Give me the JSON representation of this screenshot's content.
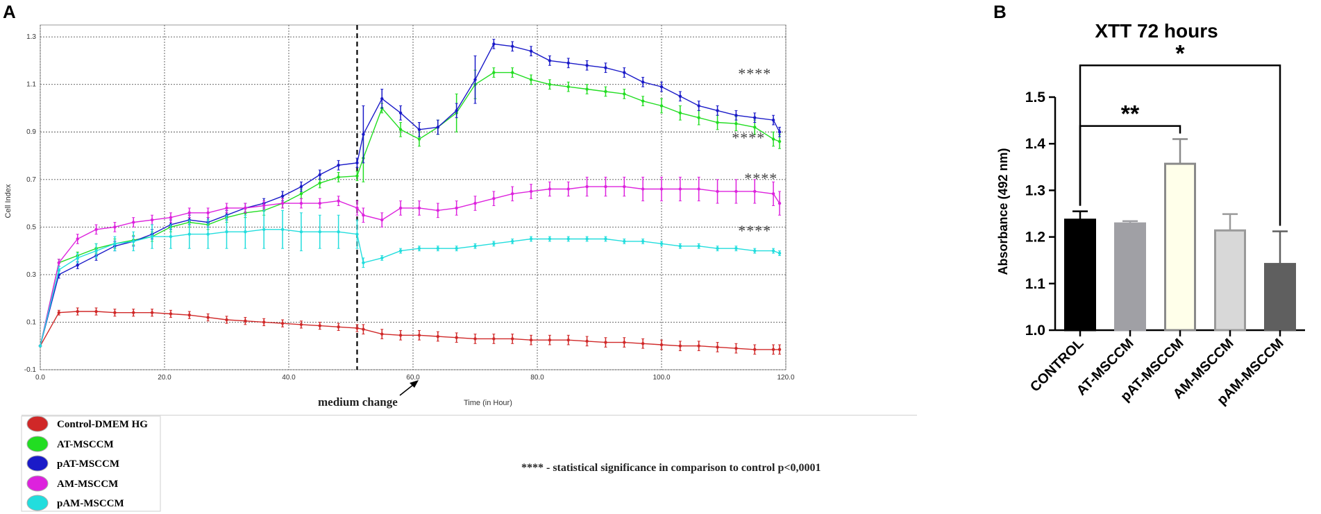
{
  "panel_a": {
    "letter": "A",
    "note": "**** - statistical significance in comparison to control p<0,0001",
    "annotation": "medium change"
  },
  "panel_b": {
    "letter": "B"
  },
  "chart_data": [
    {
      "type": "line",
      "title": "",
      "xlabel": "Time (in Hour)",
      "ylabel": "Cell Index",
      "xlim": [
        0,
        120
      ],
      "ylim": [
        -0.1,
        1.35
      ],
      "grid": true,
      "legend_placement": "below-left",
      "x_ticks": [
        "0.0",
        "20.0",
        "40.0",
        "60.0",
        "80.0",
        "100.0",
        "120.0"
      ],
      "y_ticks": [
        "-0.1",
        "0.1",
        "0.3",
        "0.5",
        "0.7",
        "0.9",
        "1.1",
        "1.3"
      ],
      "vline": {
        "x": 51,
        "label": "medium change"
      },
      "significance_labels": [
        {
          "text": "****",
          "x": 115,
          "y": 1.15
        },
        {
          "text": "****",
          "x": 114,
          "y": 0.88
        },
        {
          "text": "****",
          "x": 116,
          "y": 0.71
        },
        {
          "text": "****",
          "x": 115,
          "y": 0.49
        }
      ],
      "series": [
        {
          "name": "Control-DMEM HG",
          "color": "#d02828",
          "x": [
            0,
            3,
            6,
            9,
            12,
            15,
            18,
            21,
            24,
            27,
            30,
            33,
            36,
            39,
            42,
            45,
            48,
            51,
            52,
            55,
            58,
            61,
            64,
            67,
            70,
            73,
            76,
            79,
            82,
            85,
            88,
            91,
            94,
            97,
            100,
            103,
            106,
            109,
            112,
            115,
            118,
            119
          ],
          "y": [
            0.0,
            0.14,
            0.145,
            0.145,
            0.14,
            0.14,
            0.14,
            0.135,
            0.13,
            0.12,
            0.11,
            0.105,
            0.1,
            0.095,
            0.09,
            0.085,
            0.08,
            0.075,
            0.07,
            0.05,
            0.045,
            0.045,
            0.04,
            0.035,
            0.03,
            0.03,
            0.03,
            0.025,
            0.025,
            0.025,
            0.02,
            0.015,
            0.015,
            0.01,
            0.005,
            0.0,
            0.0,
            -0.005,
            -0.01,
            -0.015,
            -0.015,
            -0.015
          ],
          "err": [
            0.005,
            0.01,
            0.015,
            0.015,
            0.015,
            0.015,
            0.015,
            0.015,
            0.015,
            0.015,
            0.015,
            0.015,
            0.015,
            0.015,
            0.015,
            0.015,
            0.015,
            0.015,
            0.02,
            0.02,
            0.02,
            0.02,
            0.02,
            0.02,
            0.02,
            0.02,
            0.02,
            0.02,
            0.02,
            0.02,
            0.02,
            0.02,
            0.02,
            0.02,
            0.02,
            0.02,
            0.02,
            0.02,
            0.02,
            0.02,
            0.02,
            0.02
          ]
        },
        {
          "name": "AT-MSCCM",
          "color": "#22dd22",
          "x": [
            0,
            3,
            6,
            9,
            12,
            15,
            18,
            21,
            24,
            27,
            30,
            33,
            36,
            39,
            42,
            45,
            48,
            51,
            52,
            55,
            58,
            61,
            64,
            67,
            70,
            73,
            76,
            79,
            82,
            85,
            88,
            91,
            94,
            97,
            100,
            103,
            106,
            109,
            112,
            115,
            118,
            119
          ],
          "y": [
            0.0,
            0.35,
            0.38,
            0.41,
            0.43,
            0.445,
            0.46,
            0.5,
            0.52,
            0.51,
            0.54,
            0.56,
            0.57,
            0.6,
            0.64,
            0.685,
            0.71,
            0.715,
            0.79,
            1.0,
            0.91,
            0.87,
            0.92,
            0.98,
            1.1,
            1.15,
            1.15,
            1.12,
            1.1,
            1.09,
            1.08,
            1.07,
            1.06,
            1.03,
            1.01,
            0.98,
            0.96,
            0.94,
            0.935,
            0.92,
            0.87,
            0.86
          ],
          "err": [
            0.005,
            0.015,
            0.015,
            0.02,
            0.02,
            0.02,
            0.02,
            0.02,
            0.02,
            0.02,
            0.02,
            0.02,
            0.02,
            0.02,
            0.02,
            0.02,
            0.02,
            0.02,
            0.1,
            0.02,
            0.03,
            0.03,
            0.03,
            0.08,
            0.06,
            0.02,
            0.02,
            0.02,
            0.02,
            0.02,
            0.02,
            0.02,
            0.02,
            0.02,
            0.03,
            0.03,
            0.03,
            0.03,
            0.03,
            0.03,
            0.03,
            0.03
          ]
        },
        {
          "name": "pAT-MSCCM",
          "color": "#1a1ac8",
          "x": [
            0,
            3,
            6,
            9,
            12,
            15,
            18,
            21,
            24,
            27,
            30,
            33,
            36,
            39,
            42,
            45,
            48,
            51,
            52,
            55,
            58,
            61,
            64,
            67,
            70,
            73,
            76,
            79,
            82,
            85,
            88,
            91,
            94,
            97,
            100,
            103,
            106,
            109,
            112,
            115,
            118,
            119
          ],
          "y": [
            0.0,
            0.3,
            0.34,
            0.38,
            0.42,
            0.44,
            0.47,
            0.51,
            0.53,
            0.52,
            0.55,
            0.58,
            0.6,
            0.63,
            0.67,
            0.72,
            0.76,
            0.77,
            0.89,
            1.04,
            0.98,
            0.91,
            0.92,
            0.99,
            1.12,
            1.27,
            1.26,
            1.24,
            1.2,
            1.19,
            1.18,
            1.17,
            1.15,
            1.11,
            1.09,
            1.05,
            1.01,
            0.99,
            0.97,
            0.96,
            0.95,
            0.9
          ],
          "err": [
            0.005,
            0.015,
            0.015,
            0.02,
            0.02,
            0.02,
            0.02,
            0.02,
            0.02,
            0.02,
            0.02,
            0.02,
            0.02,
            0.02,
            0.02,
            0.02,
            0.02,
            0.02,
            0.12,
            0.04,
            0.03,
            0.03,
            0.03,
            0.03,
            0.1,
            0.02,
            0.02,
            0.02,
            0.02,
            0.02,
            0.02,
            0.02,
            0.02,
            0.02,
            0.02,
            0.02,
            0.02,
            0.02,
            0.02,
            0.02,
            0.02,
            0.02
          ]
        },
        {
          "name": "AM-MSCCM",
          "color": "#dd22dd",
          "x": [
            0,
            3,
            6,
            9,
            12,
            15,
            18,
            21,
            24,
            27,
            30,
            33,
            36,
            39,
            42,
            45,
            48,
            51,
            52,
            55,
            58,
            61,
            64,
            67,
            70,
            73,
            76,
            79,
            82,
            85,
            88,
            91,
            94,
            97,
            100,
            103,
            106,
            109,
            112,
            115,
            118,
            119
          ],
          "y": [
            0.0,
            0.35,
            0.45,
            0.49,
            0.5,
            0.52,
            0.53,
            0.54,
            0.56,
            0.56,
            0.58,
            0.58,
            0.59,
            0.6,
            0.6,
            0.6,
            0.61,
            0.58,
            0.55,
            0.53,
            0.58,
            0.58,
            0.57,
            0.58,
            0.6,
            0.62,
            0.64,
            0.65,
            0.66,
            0.66,
            0.67,
            0.67,
            0.67,
            0.66,
            0.66,
            0.66,
            0.66,
            0.65,
            0.65,
            0.65,
            0.64,
            0.6
          ],
          "err": [
            0.005,
            0.015,
            0.02,
            0.02,
            0.02,
            0.02,
            0.02,
            0.02,
            0.02,
            0.02,
            0.02,
            0.02,
            0.02,
            0.02,
            0.02,
            0.02,
            0.02,
            0.03,
            0.03,
            0.03,
            0.03,
            0.03,
            0.03,
            0.03,
            0.03,
            0.03,
            0.03,
            0.03,
            0.03,
            0.03,
            0.04,
            0.04,
            0.04,
            0.05,
            0.05,
            0.05,
            0.05,
            0.05,
            0.05,
            0.05,
            0.05,
            0.05
          ]
        },
        {
          "name": "pAM-MSCCM",
          "color": "#22dddd",
          "x": [
            0,
            3,
            6,
            9,
            12,
            15,
            18,
            21,
            24,
            27,
            30,
            33,
            36,
            39,
            42,
            45,
            48,
            51,
            52,
            55,
            58,
            61,
            64,
            67,
            70,
            73,
            76,
            79,
            82,
            85,
            88,
            91,
            94,
            97,
            100,
            103,
            106,
            109,
            112,
            115,
            118,
            119
          ],
          "y": [
            0.0,
            0.32,
            0.37,
            0.4,
            0.43,
            0.44,
            0.46,
            0.46,
            0.47,
            0.47,
            0.48,
            0.48,
            0.49,
            0.49,
            0.48,
            0.48,
            0.48,
            0.47,
            0.35,
            0.37,
            0.4,
            0.41,
            0.41,
            0.41,
            0.42,
            0.43,
            0.44,
            0.45,
            0.45,
            0.45,
            0.45,
            0.45,
            0.44,
            0.44,
            0.43,
            0.42,
            0.42,
            0.41,
            0.41,
            0.4,
            0.4,
            0.39
          ],
          "err": [
            0.005,
            0.015,
            0.02,
            0.03,
            0.03,
            0.04,
            0.05,
            0.05,
            0.06,
            0.06,
            0.07,
            0.07,
            0.08,
            0.08,
            0.08,
            0.07,
            0.07,
            0.06,
            0.02,
            0.01,
            0.01,
            0.01,
            0.01,
            0.01,
            0.01,
            0.01,
            0.01,
            0.01,
            0.01,
            0.01,
            0.01,
            0.01,
            0.01,
            0.01,
            0.01,
            0.01,
            0.01,
            0.01,
            0.01,
            0.01,
            0.01,
            0.01
          ]
        }
      ]
    },
    {
      "type": "bar",
      "title": "XTT 72 hours",
      "xlabel": "",
      "ylabel": "Absorbance (492 nm)",
      "ylim": [
        1.0,
        1.5
      ],
      "y_ticks": [
        "1.0",
        "1.1",
        "1.2",
        "1.3",
        "1.4",
        "1.5"
      ],
      "categories": [
        "CONTROL",
        "AT-MSCCM",
        "pAT-MSCCM",
        "AM-MSCCM",
        "pAM-MSCCM"
      ],
      "values": [
        1.237,
        1.229,
        1.357,
        1.214,
        1.142
      ],
      "errors": [
        0.018,
        0.005,
        0.053,
        0.035,
        0.07
      ],
      "fill_colors": [
        "#000000",
        "#a0a0a5",
        "#ffffea",
        "#d8d8d8",
        "#5f5f5f"
      ],
      "edge_colors": [
        "#000000",
        "#a0a0a5",
        "#8a8a8a",
        "#9a9a9a",
        "#5f5f5f"
      ],
      "significance": [
        {
          "from": 0,
          "to": 2,
          "label": "**"
        },
        {
          "from": 0,
          "to": 4,
          "label": "*"
        }
      ]
    }
  ]
}
